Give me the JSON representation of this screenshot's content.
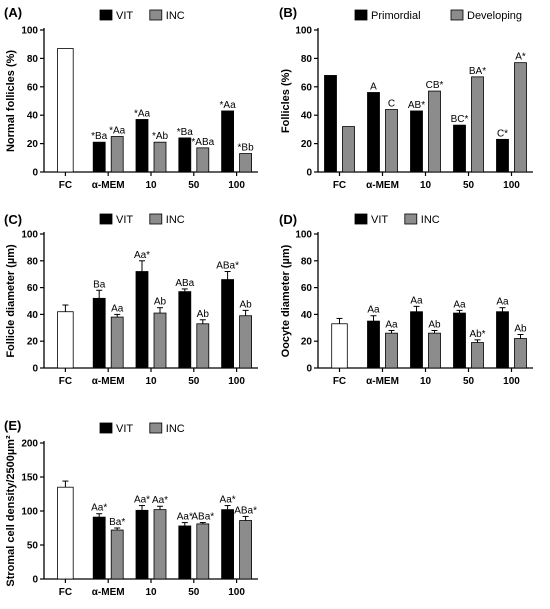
{
  "chart_data": [
    {
      "panel": "(A)",
      "type": "bar",
      "ylabel": "Normal follicles (%)",
      "ylim": [
        0,
        100
      ],
      "yticks": [
        0,
        20,
        40,
        60,
        80,
        100
      ],
      "categories": [
        "FC",
        "α-MEM",
        "10",
        "50",
        "100"
      ],
      "legend": [
        "VIT",
        "INC"
      ],
      "legend_position": "top",
      "control": {
        "name": "FC",
        "value": 87,
        "error": null
      },
      "series": [
        {
          "name": "VIT",
          "values": [
            null,
            21,
            37,
            24,
            43
          ],
          "errors": [
            null,
            null,
            null,
            null,
            null
          ],
          "labels": [
            "",
            "*Ba",
            "*Aa",
            "*Ba",
            "*Aa"
          ]
        },
        {
          "name": "INC",
          "values": [
            null,
            25,
            21,
            17,
            13
          ],
          "errors": [
            null,
            null,
            null,
            null,
            null
          ],
          "labels": [
            "",
            "*Aa",
            "*Ab",
            "*ABa",
            "*Bb"
          ]
        }
      ]
    },
    {
      "panel": "(B)",
      "type": "bar",
      "ylabel": "Follicles (%)",
      "ylim": [
        0,
        100
      ],
      "yticks": [
        0,
        20,
        40,
        60,
        80,
        100
      ],
      "categories": [
        "FC",
        "α-MEM",
        "10",
        "50",
        "100"
      ],
      "legend": [
        "Primordial",
        "Developing"
      ],
      "legend_position": "top",
      "control": null,
      "series": [
        {
          "name": "Primordial",
          "values": [
            68,
            56,
            43,
            33,
            23
          ],
          "errors": [
            null,
            null,
            null,
            null,
            null
          ],
          "labels": [
            "",
            "A",
            "AB*",
            "BC*",
            "C*"
          ]
        },
        {
          "name": "Developing",
          "values": [
            32,
            44,
            57,
            67,
            77
          ],
          "errors": [
            null,
            null,
            null,
            null,
            null
          ],
          "labels": [
            "",
            "C",
            "CB*",
            "BA*",
            "A*"
          ]
        }
      ]
    },
    {
      "panel": "(C)",
      "type": "bar",
      "ylabel": "Follicle diameter (µm)",
      "ylim": [
        0,
        100
      ],
      "yticks": [
        0,
        20,
        40,
        60,
        80,
        100
      ],
      "categories": [
        "FC",
        "α-MEM",
        "10",
        "50",
        "100"
      ],
      "legend": [
        "VIT",
        "INC"
      ],
      "legend_position": "top",
      "control": {
        "name": "FC",
        "value": 42,
        "error": 5
      },
      "series": [
        {
          "name": "VIT",
          "values": [
            null,
            52,
            72,
            57,
            66
          ],
          "errors": [
            null,
            6,
            8,
            2,
            6
          ],
          "labels": [
            "",
            "Ba",
            "Aa*",
            "ABa",
            "ABa*"
          ]
        },
        {
          "name": "INC",
          "values": [
            null,
            38,
            41,
            33,
            39
          ],
          "errors": [
            null,
            2,
            4,
            3,
            4
          ],
          "labels": [
            "",
            "Aa",
            "Ab",
            "Ab",
            "Ab"
          ]
        }
      ]
    },
    {
      "panel": "(D)",
      "type": "bar",
      "ylabel": "Oocyte diameter (µm)",
      "ylim": [
        0,
        100
      ],
      "yticks": [
        0,
        20,
        40,
        60,
        80,
        100
      ],
      "categories": [
        "FC",
        "α-MEM",
        "10",
        "50",
        "100"
      ],
      "legend": [
        "VIT",
        "INC"
      ],
      "legend_position": "top",
      "control": {
        "name": "FC",
        "value": 33,
        "error": 4
      },
      "series": [
        {
          "name": "VIT",
          "values": [
            null,
            35,
            42,
            41,
            42
          ],
          "errors": [
            null,
            4,
            4,
            2,
            3
          ],
          "labels": [
            "",
            "Aa",
            "Aa",
            "Aa",
            "Aa"
          ]
        },
        {
          "name": "INC",
          "values": [
            null,
            26,
            26,
            19,
            22
          ],
          "errors": [
            null,
            2,
            2,
            2,
            3
          ],
          "labels": [
            "",
            "Aa",
            "Ab",
            "Ab*",
            "Ab"
          ]
        }
      ]
    },
    {
      "panel": "(E)",
      "type": "bar",
      "ylabel": "Stromal cell density/2500µm²",
      "ylim": [
        0,
        200
      ],
      "yticks": [
        0,
        50,
        100,
        150,
        200
      ],
      "categories": [
        "FC",
        "α-MEM",
        "10",
        "50",
        "100"
      ],
      "legend": [
        "VIT",
        "INC"
      ],
      "legend_position": "top",
      "control": {
        "name": "FC",
        "value": 135,
        "error": 9
      },
      "series": [
        {
          "name": "VIT",
          "values": [
            null,
            91,
            101,
            78,
            102
          ],
          "errors": [
            null,
            5,
            7,
            5,
            6
          ],
          "labels": [
            "",
            "Aa*",
            "Aa*",
            "Aa*",
            "Aa*"
          ]
        },
        {
          "name": "INC",
          "values": [
            null,
            72,
            102,
            81,
            86
          ],
          "errors": [
            null,
            3,
            5,
            2,
            6
          ],
          "labels": [
            "",
            "Ba*",
            "Aa*",
            "ABa*",
            "ABa*"
          ]
        }
      ]
    }
  ],
  "colors": {
    "series1": "#000000",
    "series2": "#8c8c8c",
    "control": "#ffffff",
    "axis": "#000000"
  }
}
